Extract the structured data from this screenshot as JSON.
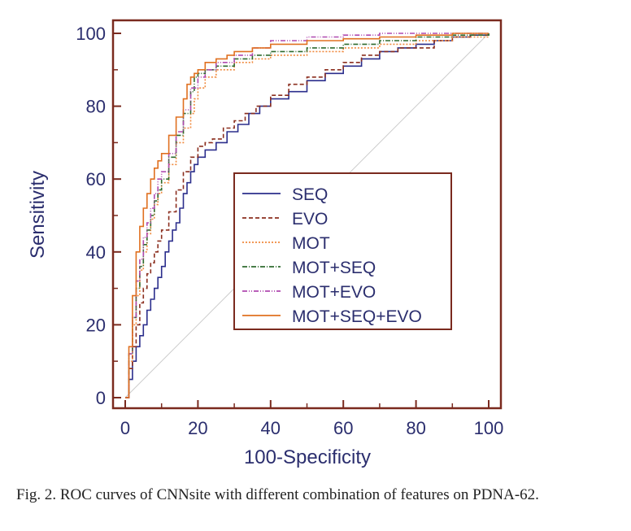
{
  "caption": "Fig. 2.  ROC curves of CNNsite with different combination of features on PDNA-62.",
  "chart_data": {
    "type": "line",
    "xlabel": "100-Specificity",
    "ylabel": "Sensitivity",
    "xlim": [
      0,
      100
    ],
    "ylim": [
      0,
      100
    ],
    "xticks": [
      0,
      20,
      40,
      60,
      80,
      100
    ],
    "yticks": [
      0,
      20,
      40,
      60,
      80,
      100
    ],
    "legend_position": "center-right",
    "grid": false,
    "reference_line": {
      "points": [
        [
          0,
          0
        ],
        [
          100,
          100
        ]
      ],
      "color": "#cccccc"
    },
    "series": [
      {
        "name": "SEQ",
        "color": "#2b2e8c",
        "dash": "",
        "points": [
          [
            0,
            0
          ],
          [
            1,
            5
          ],
          [
            2,
            10
          ],
          [
            3,
            14
          ],
          [
            4,
            17
          ],
          [
            5,
            20
          ],
          [
            6,
            24
          ],
          [
            7,
            27
          ],
          [
            8,
            30
          ],
          [
            9,
            33
          ],
          [
            10,
            36
          ],
          [
            11,
            40
          ],
          [
            12,
            43
          ],
          [
            13,
            46
          ],
          [
            14,
            48
          ],
          [
            15,
            52
          ],
          [
            16,
            56
          ],
          [
            17,
            59
          ],
          [
            18,
            62
          ],
          [
            19,
            64
          ],
          [
            20,
            66
          ],
          [
            22,
            68
          ],
          [
            25,
            70
          ],
          [
            28,
            73
          ],
          [
            31,
            75
          ],
          [
            34,
            78
          ],
          [
            37,
            80
          ],
          [
            40,
            82
          ],
          [
            45,
            84
          ],
          [
            50,
            87
          ],
          [
            55,
            89
          ],
          [
            60,
            91
          ],
          [
            65,
            93
          ],
          [
            70,
            95
          ],
          [
            75,
            96
          ],
          [
            80,
            97
          ],
          [
            85,
            98
          ],
          [
            90,
            99
          ],
          [
            95,
            99.5
          ],
          [
            100,
            100
          ]
        ]
      },
      {
        "name": "EVO",
        "color": "#8b2e1e",
        "dash": "5,3",
        "points": [
          [
            0,
            0
          ],
          [
            1,
            8
          ],
          [
            2,
            14
          ],
          [
            3,
            20
          ],
          [
            4,
            26
          ],
          [
            5,
            30
          ],
          [
            6,
            34
          ],
          [
            7,
            37
          ],
          [
            8,
            40
          ],
          [
            9,
            43
          ],
          [
            10,
            46
          ],
          [
            12,
            51
          ],
          [
            14,
            57
          ],
          [
            16,
            62
          ],
          [
            18,
            66
          ],
          [
            20,
            69
          ],
          [
            22,
            70
          ],
          [
            24,
            71
          ],
          [
            27,
            74
          ],
          [
            30,
            76
          ],
          [
            33,
            78
          ],
          [
            36,
            80
          ],
          [
            40,
            83
          ],
          [
            45,
            86
          ],
          [
            50,
            88
          ],
          [
            55,
            90
          ],
          [
            60,
            92
          ],
          [
            65,
            94
          ],
          [
            70,
            95
          ],
          [
            75,
            96
          ],
          [
            80,
            96
          ],
          [
            85,
            98
          ],
          [
            90,
            99
          ],
          [
            95,
            99.5
          ],
          [
            100,
            100
          ]
        ]
      },
      {
        "name": "MOT",
        "color": "#f08a3e",
        "dash": "2,2",
        "points": [
          [
            0,
            0
          ],
          [
            1,
            10
          ],
          [
            2,
            20
          ],
          [
            3,
            28
          ],
          [
            4,
            35
          ],
          [
            5,
            40
          ],
          [
            6,
            45
          ],
          [
            7,
            49
          ],
          [
            8,
            53
          ],
          [
            9,
            56
          ],
          [
            10,
            59
          ],
          [
            12,
            64
          ],
          [
            14,
            70
          ],
          [
            16,
            74
          ],
          [
            18,
            78
          ],
          [
            19,
            82
          ],
          [
            20,
            85
          ],
          [
            22,
            88
          ],
          [
            25,
            90
          ],
          [
            30,
            92
          ],
          [
            35,
            93
          ],
          [
            40,
            94
          ],
          [
            50,
            95
          ],
          [
            60,
            96
          ],
          [
            70,
            97
          ],
          [
            80,
            98
          ],
          [
            90,
            99
          ],
          [
            100,
            100
          ]
        ]
      },
      {
        "name": "MOT+SEQ",
        "color": "#2e6b2e",
        "dash": "6,2,1,2",
        "points": [
          [
            0,
            0
          ],
          [
            1,
            12
          ],
          [
            2,
            22
          ],
          [
            3,
            30
          ],
          [
            4,
            36
          ],
          [
            5,
            42
          ],
          [
            6,
            46
          ],
          [
            7,
            50
          ],
          [
            8,
            54
          ],
          [
            9,
            57
          ],
          [
            10,
            60
          ],
          [
            12,
            66
          ],
          [
            14,
            72
          ],
          [
            16,
            78
          ],
          [
            18,
            84
          ],
          [
            19,
            88
          ],
          [
            20,
            89
          ],
          [
            22,
            90
          ],
          [
            25,
            91
          ],
          [
            30,
            93
          ],
          [
            35,
            94
          ],
          [
            40,
            95
          ],
          [
            50,
            96
          ],
          [
            60,
            97
          ],
          [
            70,
            98
          ],
          [
            80,
            99
          ],
          [
            90,
            99.5
          ],
          [
            100,
            100
          ]
        ]
      },
      {
        "name": "MOT+EVO",
        "color": "#b04ab0",
        "dash": "6,2,1,2,1,2",
        "points": [
          [
            0,
            0
          ],
          [
            1,
            12
          ],
          [
            2,
            22
          ],
          [
            3,
            32
          ],
          [
            4,
            38
          ],
          [
            5,
            44
          ],
          [
            6,
            48
          ],
          [
            7,
            52
          ],
          [
            8,
            56
          ],
          [
            9,
            60
          ],
          [
            10,
            62
          ],
          [
            12,
            67
          ],
          [
            14,
            73
          ],
          [
            16,
            79
          ],
          [
            18,
            85
          ],
          [
            20,
            88
          ],
          [
            22,
            90
          ],
          [
            25,
            92
          ],
          [
            30,
            94
          ],
          [
            35,
            96
          ],
          [
            40,
            98
          ],
          [
            50,
            99
          ],
          [
            60,
            99.5
          ],
          [
            70,
            100
          ],
          [
            100,
            100
          ]
        ]
      },
      {
        "name": "MOT+SEQ+EVO",
        "color": "#e07020",
        "dash": "",
        "points": [
          [
            0,
            0
          ],
          [
            1,
            14
          ],
          [
            2,
            28
          ],
          [
            3,
            40
          ],
          [
            4,
            47
          ],
          [
            5,
            52
          ],
          [
            6,
            56
          ],
          [
            7,
            60
          ],
          [
            8,
            63
          ],
          [
            9,
            65
          ],
          [
            10,
            67
          ],
          [
            12,
            72
          ],
          [
            14,
            77
          ],
          [
            16,
            82
          ],
          [
            17,
            86
          ],
          [
            18,
            88
          ],
          [
            19,
            89
          ],
          [
            20,
            90
          ],
          [
            22,
            92
          ],
          [
            25,
            93
          ],
          [
            28,
            94
          ],
          [
            30,
            95
          ],
          [
            35,
            96
          ],
          [
            40,
            97
          ],
          [
            50,
            98
          ],
          [
            60,
            98.5
          ],
          [
            70,
            99
          ],
          [
            80,
            99.5
          ],
          [
            90,
            100
          ],
          [
            100,
            100
          ]
        ]
      }
    ]
  }
}
